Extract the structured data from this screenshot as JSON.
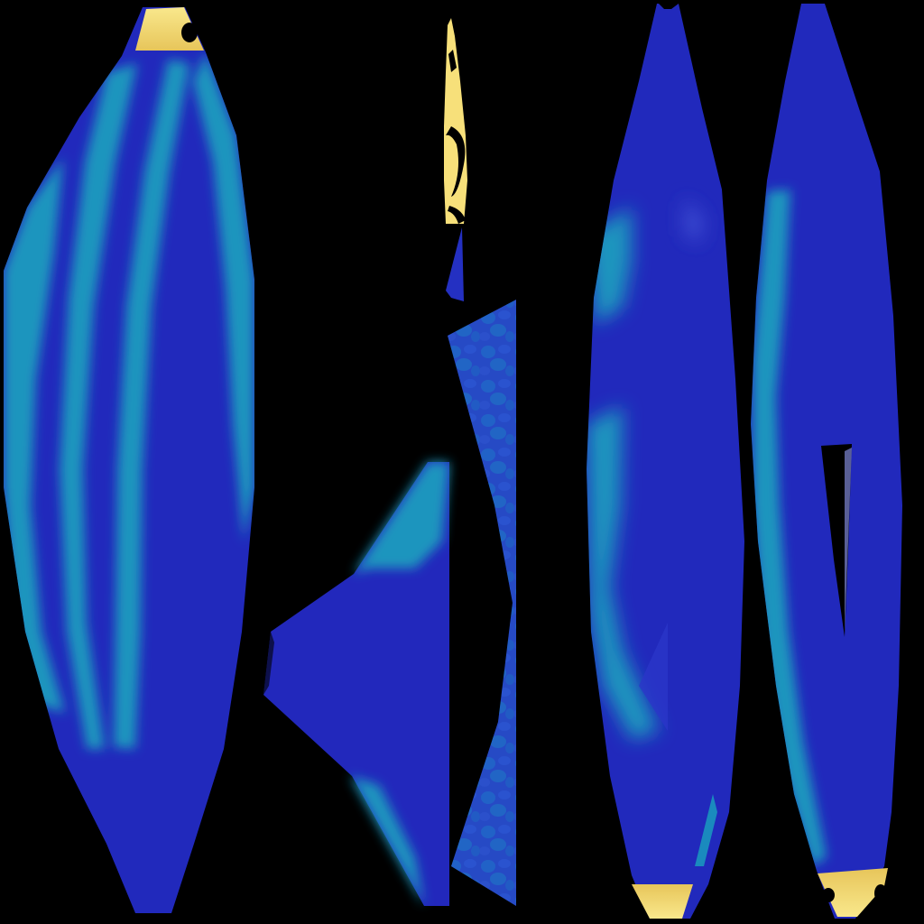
{
  "texture_atlas": {
    "background_color": "#000000",
    "colors": {
      "deep_blue": "#2028B8",
      "royal_blue": "#2430C2",
      "teal": "#1A8FB8",
      "teal_light": "#1FA6C8",
      "yellow": "#F7E27A",
      "yellow_dark": "#E9C75A",
      "mottled_blue": "#2D5BC9",
      "black": "#000000"
    },
    "pieces": [
      {
        "name": "main-body-panel",
        "label": ""
      },
      {
        "name": "tail-fin-panel",
        "label": ""
      },
      {
        "name": "dorsal-strip-panel",
        "label": ""
      },
      {
        "name": "side-panel-left",
        "label": ""
      },
      {
        "name": "side-panel-right",
        "label": ""
      }
    ]
  }
}
